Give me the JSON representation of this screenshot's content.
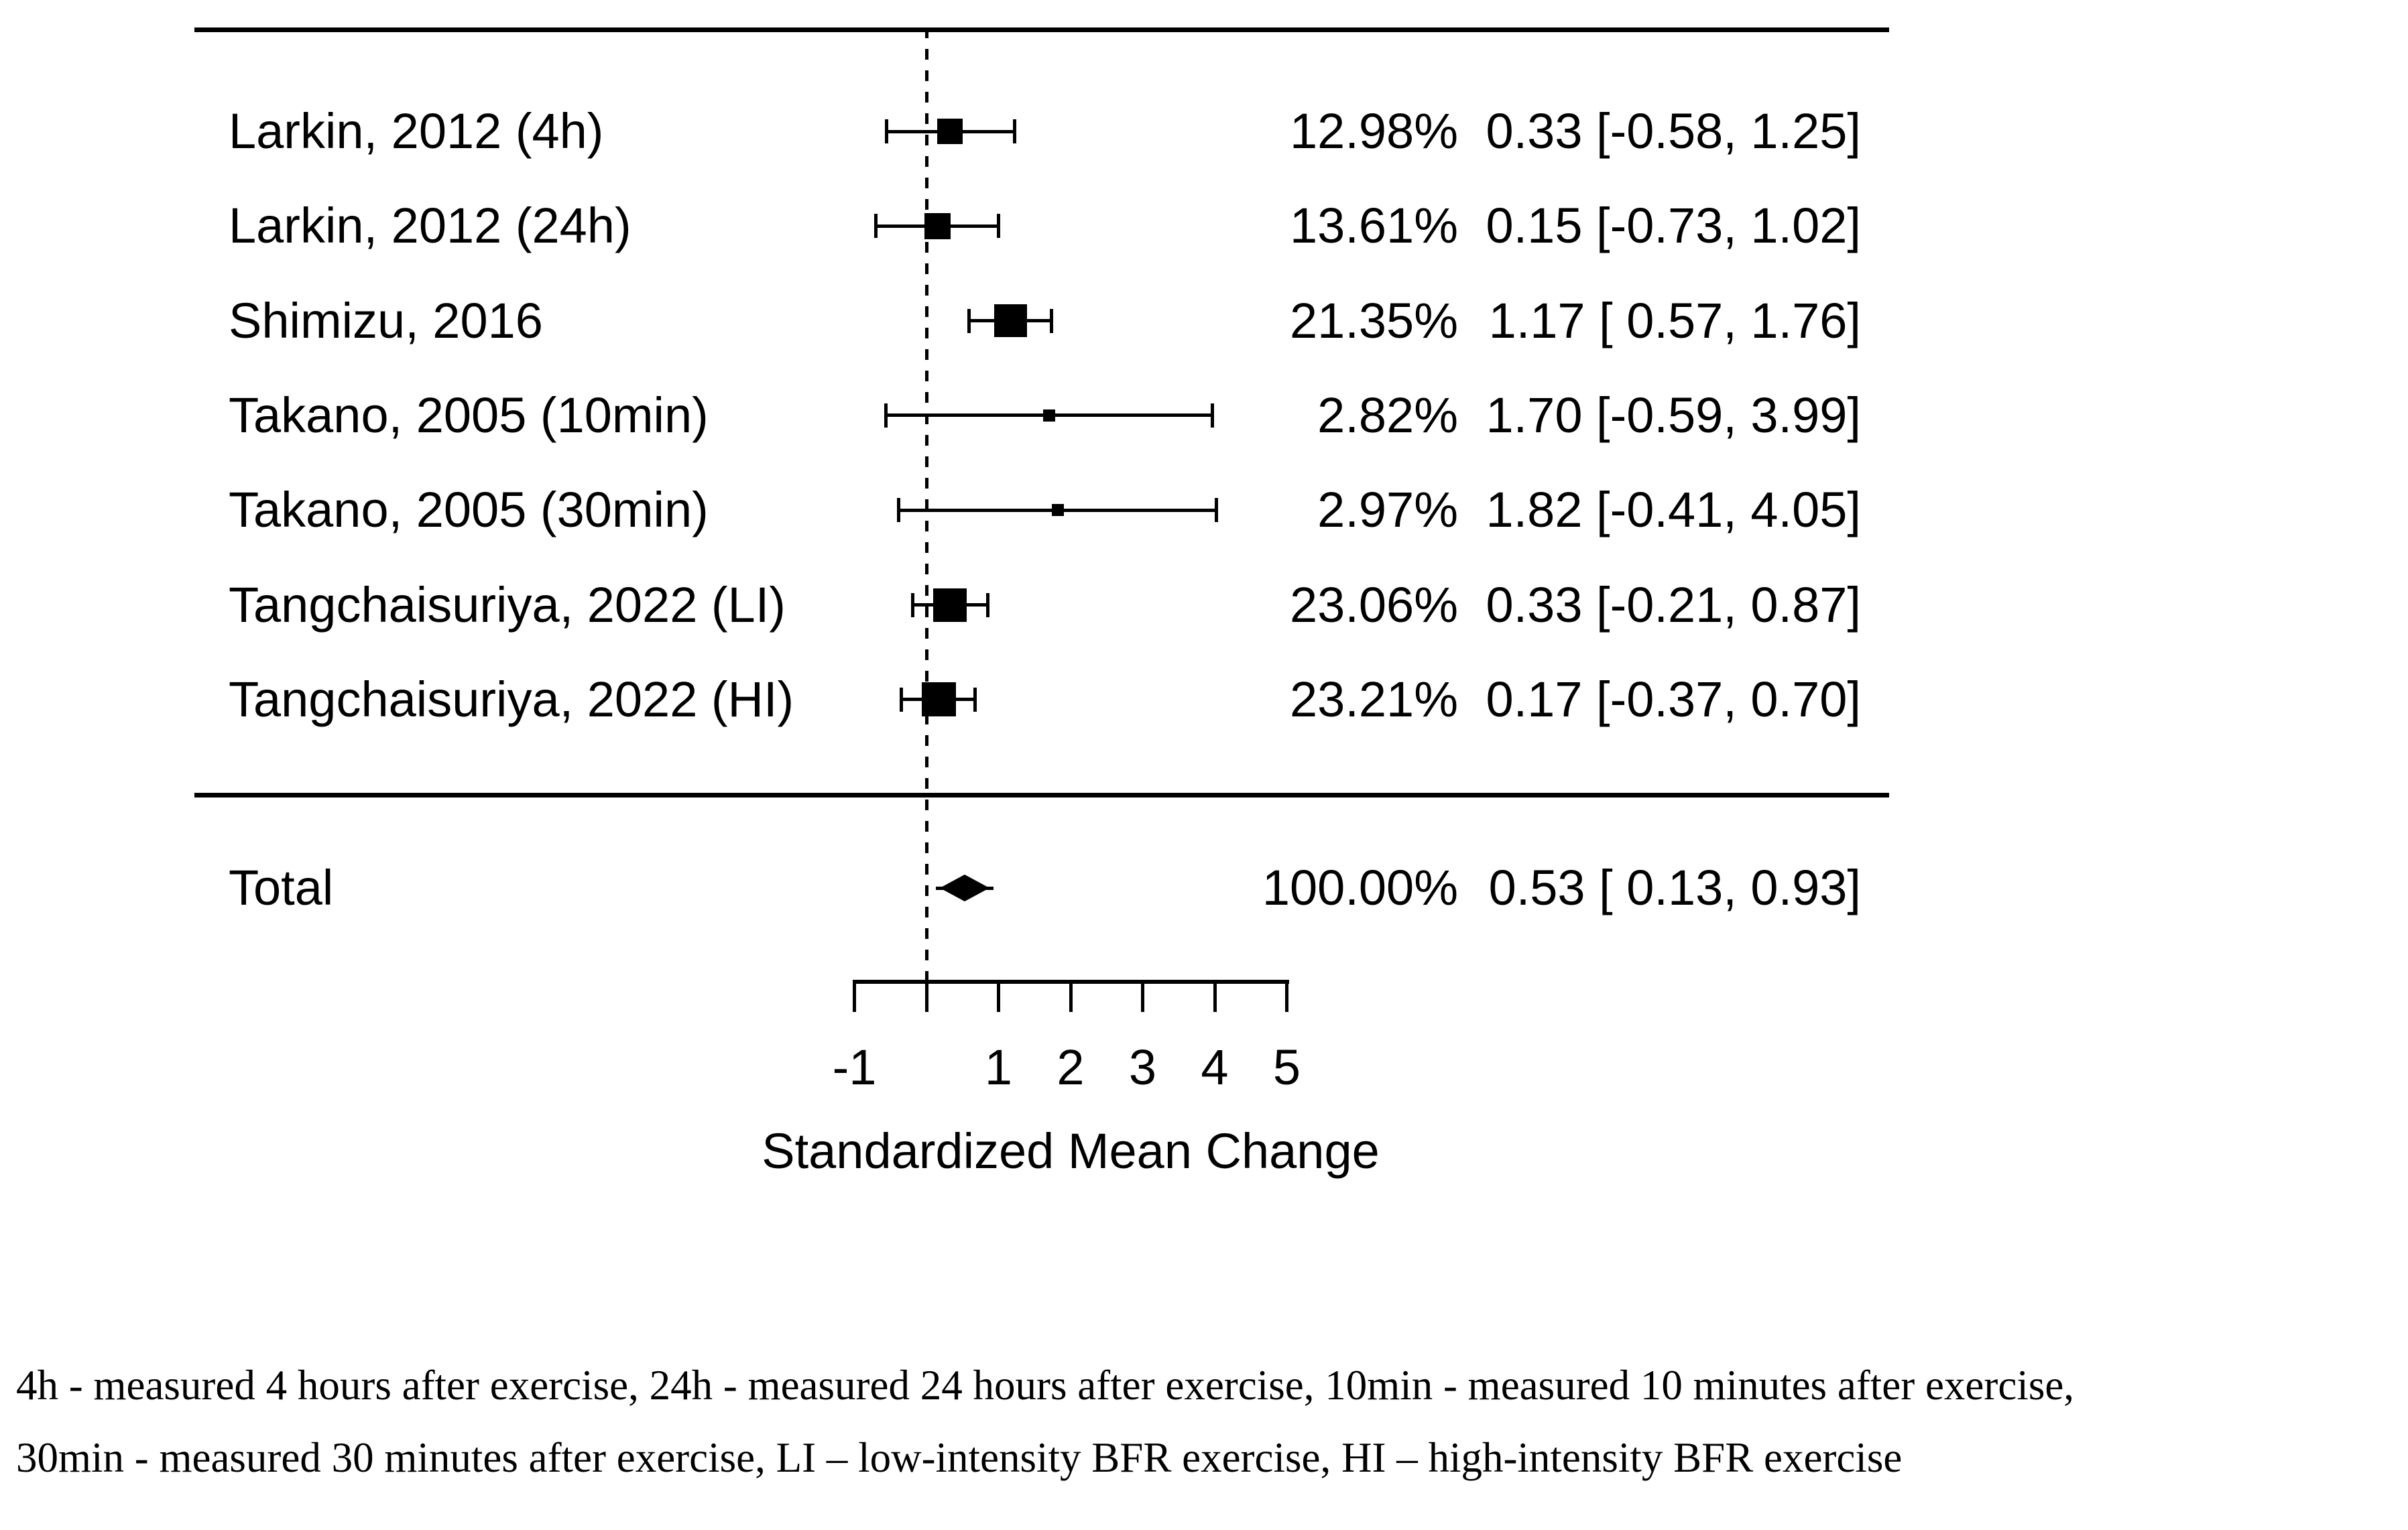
{
  "chart_data": {
    "type": "forest",
    "title": "",
    "xlabel": "Standardized Mean Change",
    "xlim": [
      -1,
      5
    ],
    "grid": false,
    "zero_line": 0,
    "x_ticks": [
      {
        "value": -1,
        "label": "-1"
      },
      {
        "value": 0,
        "label": ""
      },
      {
        "value": 1,
        "label": "1"
      },
      {
        "value": 2,
        "label": "2"
      },
      {
        "value": 3,
        "label": "3"
      },
      {
        "value": 4,
        "label": "4"
      },
      {
        "value": 5,
        "label": "5"
      }
    ],
    "studies": [
      {
        "label": "Larkin, 2012 (4h)",
        "weight": 12.98,
        "weight_text": "12.98%",
        "estimate": 0.33,
        "ci_low": -0.58,
        "ci_high": 1.25,
        "estimate_text": "0.33 [-0.58, 1.25]"
      },
      {
        "label": "Larkin, 2012 (24h)",
        "weight": 13.61,
        "weight_text": "13.61%",
        "estimate": 0.15,
        "ci_low": -0.73,
        "ci_high": 1.02,
        "estimate_text": "0.15 [-0.73, 1.02]"
      },
      {
        "label": "Shimizu, 2016",
        "weight": 21.35,
        "weight_text": "21.35%",
        "estimate": 1.17,
        "ci_low": 0.57,
        "ci_high": 1.76,
        "estimate_text": "1.17 [ 0.57, 1.76]"
      },
      {
        "label": "Takano, 2005 (10min)",
        "weight": 2.82,
        "weight_text": "2.82%",
        "estimate": 1.7,
        "ci_low": -0.59,
        "ci_high": 3.99,
        "estimate_text": "1.70 [-0.59, 3.99]"
      },
      {
        "label": "Takano, 2005 (30min)",
        "weight": 2.97,
        "weight_text": "2.97%",
        "estimate": 1.82,
        "ci_low": -0.41,
        "ci_high": 4.05,
        "estimate_text": "1.82 [-0.41, 4.05]"
      },
      {
        "label": "Tangchaisuriya, 2022 (LI)",
        "weight": 23.06,
        "weight_text": "23.06%",
        "estimate": 0.33,
        "ci_low": -0.21,
        "ci_high": 0.87,
        "estimate_text": "0.33 [-0.21, 0.87]"
      },
      {
        "label": "Tangchaisuriya, 2022 (HI)",
        "weight": 23.21,
        "weight_text": "23.21%",
        "estimate": 0.17,
        "ci_low": -0.37,
        "ci_high": 0.7,
        "estimate_text": "0.17 [-0.37, 0.70]"
      }
    ],
    "total": {
      "label": "Total",
      "weight": 100.0,
      "weight_text": "100.00%",
      "estimate": 0.53,
      "ci_low": 0.13,
      "ci_high": 0.93,
      "estimate_text": "0.53 [ 0.13, 0.93]"
    }
  },
  "footnote": {
    "lines": [
      "4h - measured 4 hours after exercise, 24h - measured 24 hours after exercise, 10min - measured 10 minutes after exercise,",
      "30min - measured 30 minutes after exercise, LI – low-intensity BFR exercise, HI – high-intensity BFR exercise"
    ]
  },
  "colors": {
    "foreground": "#000000",
    "background": "#ffffff"
  }
}
